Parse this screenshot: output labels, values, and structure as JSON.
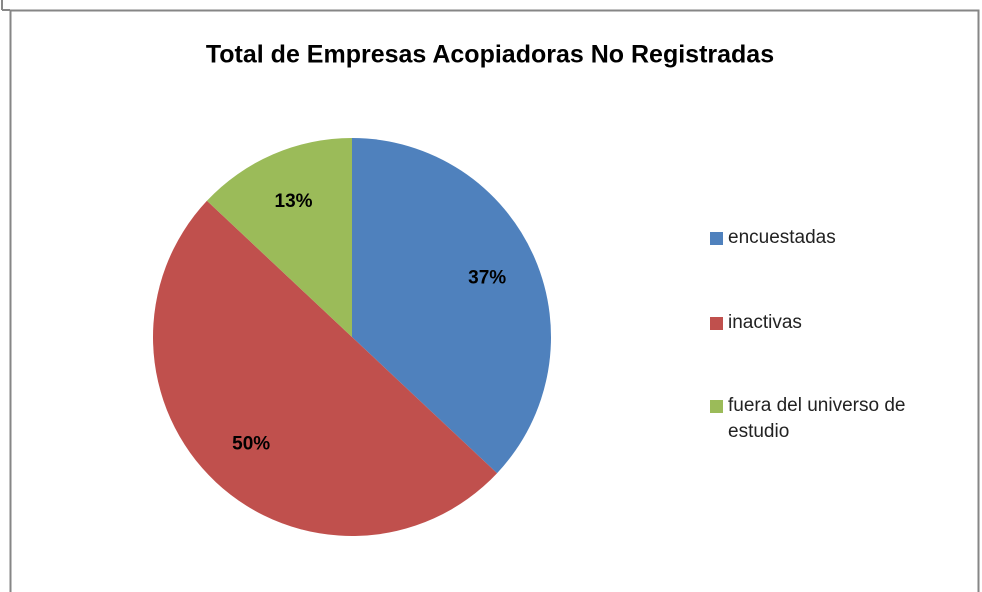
{
  "chart_data": {
    "type": "pie",
    "title": "Total de Empresas Acopiadoras No Registradas",
    "categories": [
      "encuestadas",
      "inactivas",
      "fuera del universo de estudio"
    ],
    "values": [
      37,
      50,
      13
    ],
    "value_labels": [
      "37%",
      "50%",
      "13%"
    ],
    "colors": [
      "#4f81bd",
      "#c0504d",
      "#9bbb59"
    ],
    "legend": "right"
  }
}
